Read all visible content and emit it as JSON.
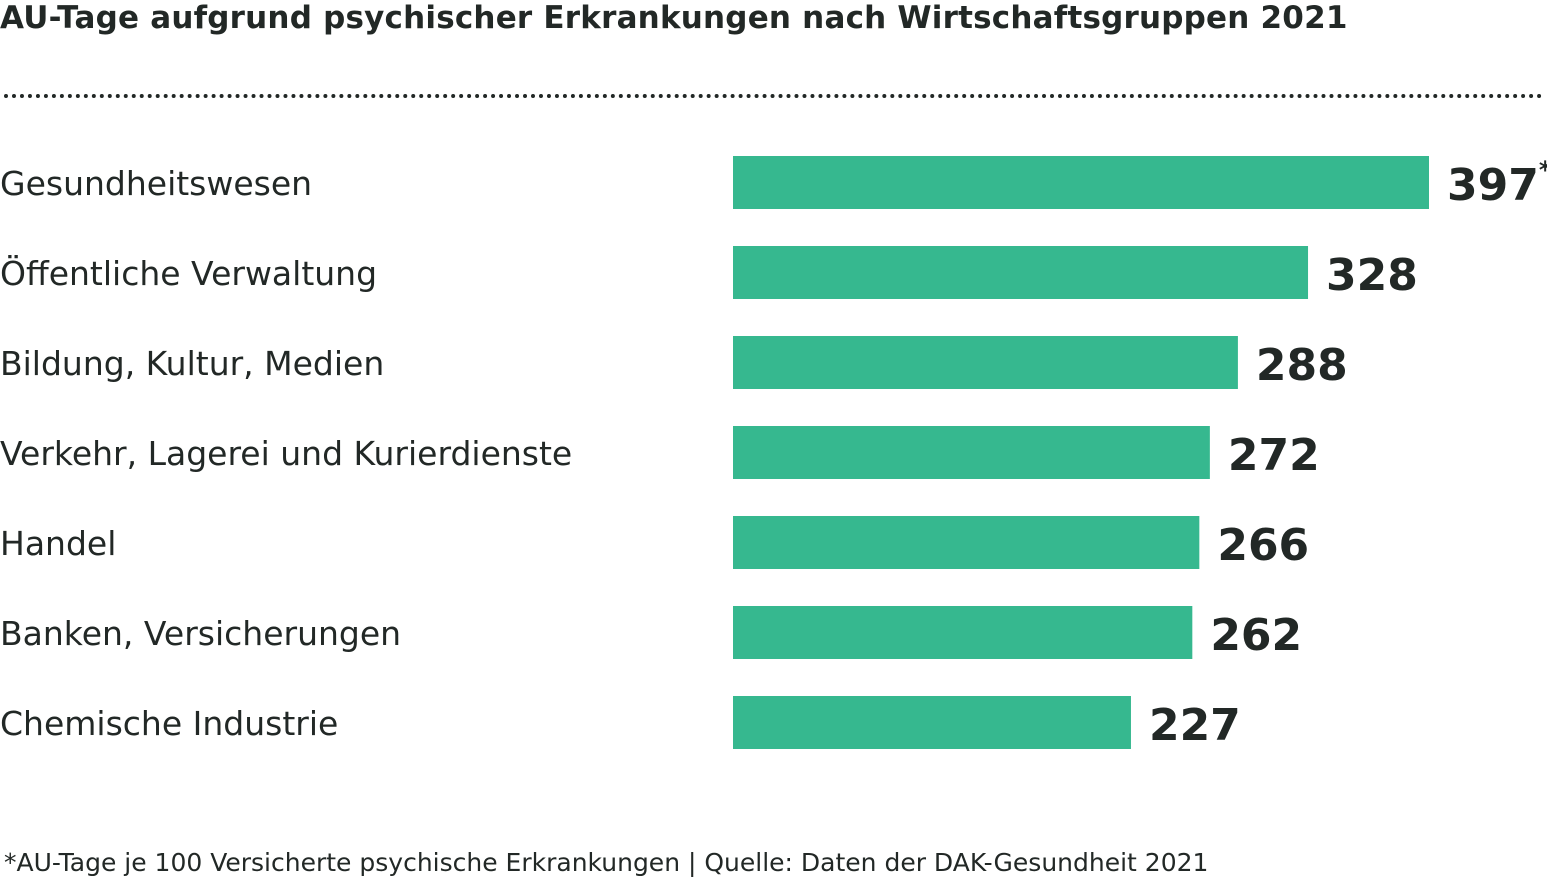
{
  "chart_data": {
    "type": "bar",
    "orientation": "horizontal",
    "title": "AU-Tage aufgrund psychischer Erkrankungen nach Wirtschaftsgruppen 2021",
    "categories": [
      "Gesundheitswesen",
      "Öffentliche Verwaltung",
      "Bildung, Kultur, Medien",
      "Verkehr, Lagerei und Kurierdienste",
      "Handel",
      "Banken, Versicherungen",
      "Chemische Industrie"
    ],
    "values": [
      397,
      328,
      288,
      272,
      266,
      262,
      227
    ],
    "value_marker": "*",
    "bar_color": "#36b88f",
    "xlabel": "",
    "ylabel": "",
    "xlim": [
      0,
      397
    ],
    "grid": false,
    "legend": "none"
  },
  "footnote": "*AU-Tage je 100 Versicherte psychische Erkrankungen | Quelle: Daten der DAK-Gesundheit 2021"
}
